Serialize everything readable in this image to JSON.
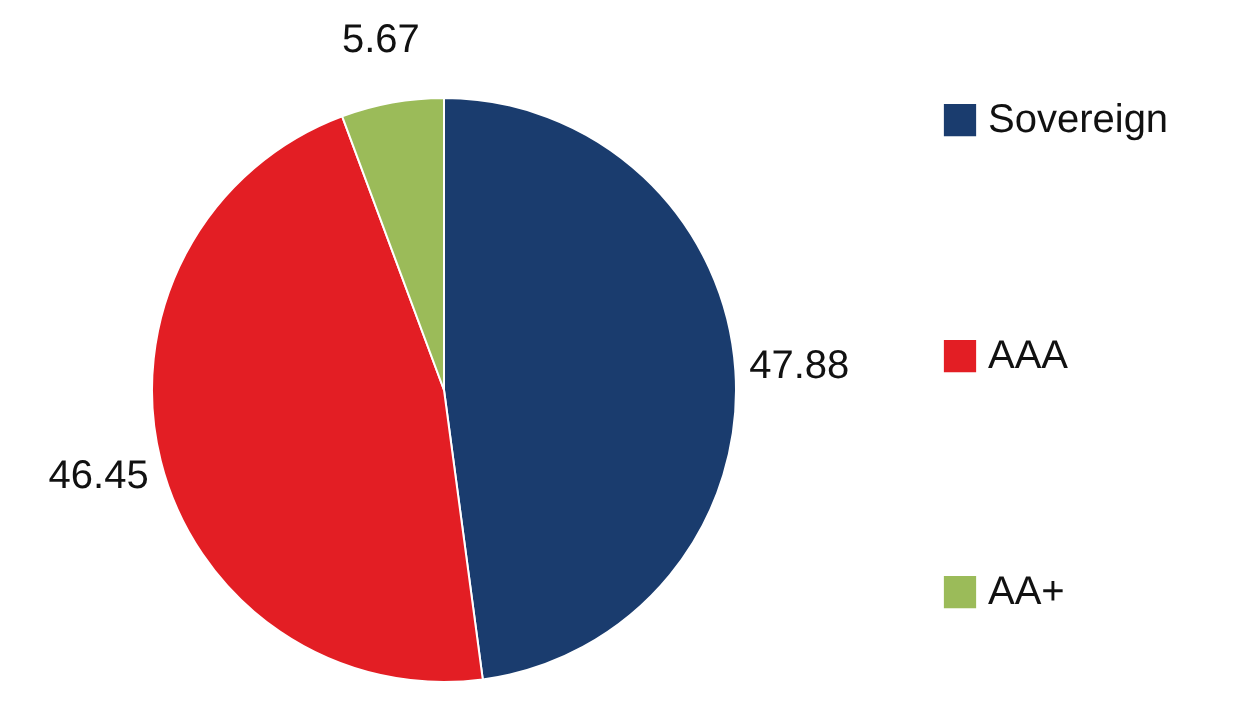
{
  "chart_data": {
    "type": "pie",
    "categories": [
      "Sovereign",
      "AAA",
      "AA+"
    ],
    "values": [
      47.88,
      46.45,
      5.67
    ],
    "colors": [
      "#1a3c6e",
      "#e31e24",
      "#9bbb59"
    ],
    "data_labels": true,
    "legend": "right"
  }
}
